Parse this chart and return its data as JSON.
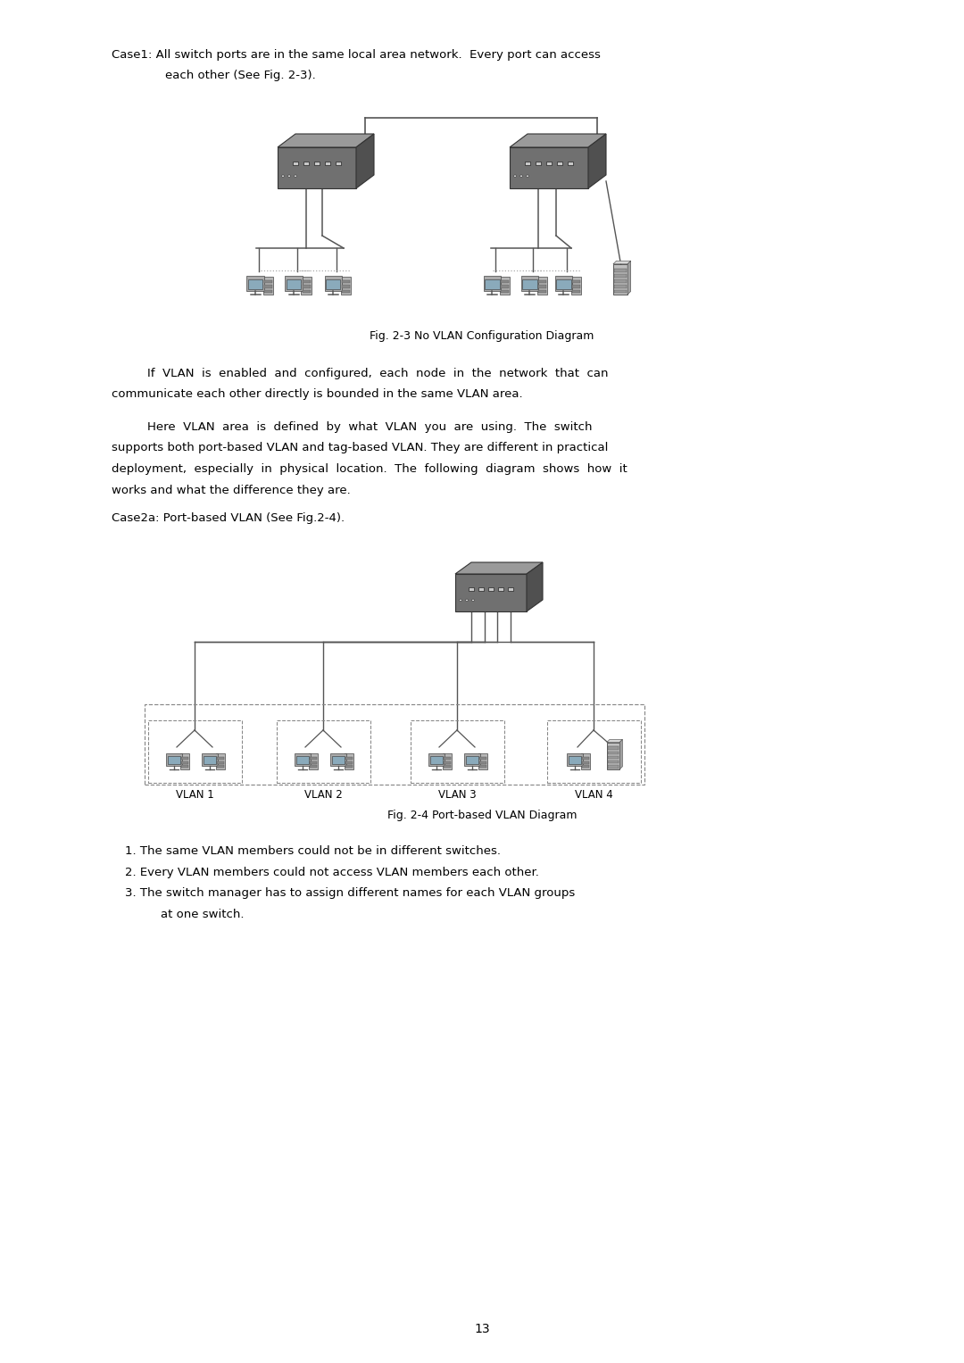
{
  "bg_color": "#ffffff",
  "page_width": 10.8,
  "page_height": 15.27,
  "text_color": "#000000",
  "case1_line1": "Case1: All switch ports are in the same local area network.  Every port can access",
  "case1_line2": "each other (See Fig. 2-3).",
  "fig1_caption": "Fig. 2-3 No VLAN Configuration Diagram",
  "para1_line1": "If  VLAN  is  enabled  and  configured,  each  node  in  the  network  that  can",
  "para1_line2": "communicate each other directly is bounded in the same VLAN area.",
  "para2_line1": "Here  VLAN  area  is  defined  by  what  VLAN  you  are  using.  The  switch",
  "para2_line2": "supports both port-based VLAN and tag-based VLAN. They are different in practical",
  "para2_line3": "deployment,  especially  in  physical  location.  The  following  diagram  shows  how  it",
  "para2_line4": "works and what the difference they are.",
  "case2a_text": "Case2a: Port-based VLAN (See Fig.2-4).",
  "fig2_caption": "Fig. 2-4 Port-based VLAN Diagram",
  "list_item1": "1. The same VLAN members could not be in different switches.",
  "list_item2": "2. Every VLAN members could not access VLAN members each other.",
  "list_item3a": "3. The switch manager has to assign different names for each VLAN groups",
  "list_item3b": "at one switch.",
  "page_number": "13",
  "wire_color": "#555555",
  "vlan_label_color": "#000000",
  "font_size_body": 9.5,
  "font_size_caption": 9.0,
  "font_size_list": 9.5,
  "font_size_page": 10.0
}
